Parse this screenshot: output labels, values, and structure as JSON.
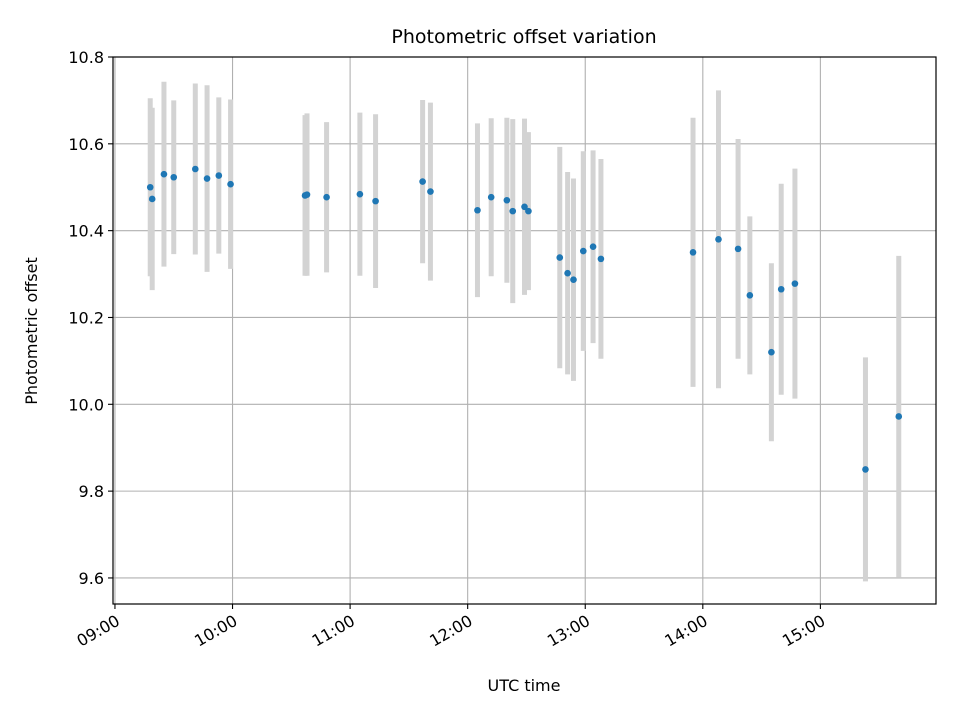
{
  "chart_data": {
    "type": "scatter",
    "title": "Photometric offset variation",
    "xlabel": "UTC time",
    "ylabel": "Photometric offset",
    "x_ticks": [
      "09:00",
      "10:00",
      "11:00",
      "12:00",
      "13:00",
      "14:00",
      "15:00"
    ],
    "y_ticks": [
      "9.6",
      "9.8",
      "10.0",
      "10.2",
      "10.4",
      "10.6",
      "10.8"
    ],
    "xlim": [
      "08:59",
      "15:59"
    ],
    "ylim": [
      9.54,
      10.8
    ],
    "grid": true,
    "errorbar_color": "#d3d3d3",
    "marker_color": "#1f77b4",
    "points": [
      {
        "x": "09:18",
        "y": 10.5,
        "err": 0.205
      },
      {
        "x": "09:19",
        "y": 10.473,
        "err": 0.21
      },
      {
        "x": "09:25",
        "y": 10.53,
        "err": 0.213
      },
      {
        "x": "09:30",
        "y": 10.523,
        "err": 0.177
      },
      {
        "x": "09:41",
        "y": 10.542,
        "err": 0.197
      },
      {
        "x": "09:47",
        "y": 10.52,
        "err": 0.215
      },
      {
        "x": "09:53",
        "y": 10.527,
        "err": 0.18
      },
      {
        "x": "09:59",
        "y": 10.507,
        "err": 0.195
      },
      {
        "x": "10:37",
        "y": 10.481,
        "err": 0.185
      },
      {
        "x": "10:38",
        "y": 10.483,
        "err": 0.187
      },
      {
        "x": "10:48",
        "y": 10.477,
        "err": 0.173
      },
      {
        "x": "11:05",
        "y": 10.484,
        "err": 0.188
      },
      {
        "x": "11:13",
        "y": 10.468,
        "err": 0.2
      },
      {
        "x": "11:37",
        "y": 10.513,
        "err": 0.188
      },
      {
        "x": "11:41",
        "y": 10.49,
        "err": 0.205
      },
      {
        "x": "12:05",
        "y": 10.447,
        "err": 0.2
      },
      {
        "x": "12:12",
        "y": 10.477,
        "err": 0.182
      },
      {
        "x": "12:20",
        "y": 10.47,
        "err": 0.19
      },
      {
        "x": "12:23",
        "y": 10.445,
        "err": 0.212
      },
      {
        "x": "12:29",
        "y": 10.455,
        "err": 0.203
      },
      {
        "x": "12:31",
        "y": 10.445,
        "err": 0.182
      },
      {
        "x": "12:47",
        "y": 10.338,
        "err": 0.255
      },
      {
        "x": "12:51",
        "y": 10.302,
        "err": 0.233
      },
      {
        "x": "12:54",
        "y": 10.287,
        "err": 0.233
      },
      {
        "x": "12:59",
        "y": 10.353,
        "err": 0.23
      },
      {
        "x": "13:04",
        "y": 10.363,
        "err": 0.222
      },
      {
        "x": "13:08",
        "y": 10.335,
        "err": 0.23
      },
      {
        "x": "13:55",
        "y": 10.35,
        "err": 0.31
      },
      {
        "x": "14:08",
        "y": 10.38,
        "err": 0.343
      },
      {
        "x": "14:18",
        "y": 10.358,
        "err": 0.253
      },
      {
        "x": "14:24",
        "y": 10.251,
        "err": 0.182
      },
      {
        "x": "14:35",
        "y": 10.12,
        "err": 0.205
      },
      {
        "x": "14:40",
        "y": 10.265,
        "err": 0.243
      },
      {
        "x": "14:47",
        "y": 10.278,
        "err": 0.265
      },
      {
        "x": "15:23",
        "y": 9.85,
        "err": 0.258
      },
      {
        "x": "15:40",
        "y": 9.972,
        "err": 0.37
      }
    ]
  }
}
